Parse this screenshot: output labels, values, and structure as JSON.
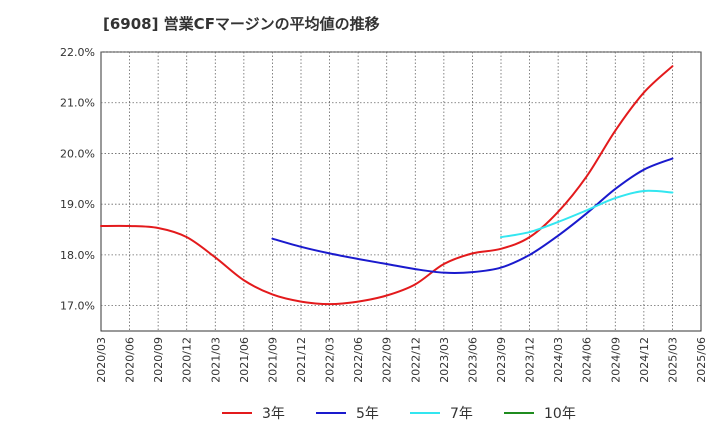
{
  "chart_data": {
    "type": "line",
    "title": "[6908]  営業CFマージンの平均値の推移",
    "xlabel": "",
    "ylabel": "",
    "ylim": [
      16.5,
      22.0
    ],
    "yticks": [
      17.0,
      18.0,
      19.0,
      20.0,
      21.0,
      22.0
    ],
    "ytick_labels": [
      "17.0%",
      "18.0%",
      "19.0%",
      "20.0%",
      "21.0%",
      "22.0%"
    ],
    "x_tick_labels": [
      "2020/03",
      "2020/06",
      "2020/09",
      "2020/12",
      "2021/03",
      "2021/06",
      "2021/09",
      "2021/12",
      "2022/03",
      "2022/06",
      "2022/09",
      "2022/12",
      "2023/03",
      "2023/06",
      "2023/09",
      "2023/12",
      "2024/03",
      "2024/06",
      "2024/09",
      "2024/12",
      "2025/03",
      "2025/06"
    ],
    "grid": true,
    "legend_position": "bottom",
    "series": [
      {
        "name": "3年",
        "color": "#e31a1c",
        "start_index": 0,
        "values": [
          18.57,
          18.57,
          18.53,
          18.35,
          17.95,
          17.5,
          17.22,
          17.08,
          17.03,
          17.08,
          17.2,
          17.42,
          17.82,
          18.03,
          18.12,
          18.35,
          18.85,
          19.55,
          20.45,
          21.2,
          21.72
        ]
      },
      {
        "name": "5年",
        "color": "#1a1acd",
        "start_index": 6,
        "values": [
          18.32,
          18.16,
          18.03,
          17.92,
          17.82,
          17.72,
          17.65,
          17.66,
          17.75,
          18.0,
          18.38,
          18.82,
          19.3,
          19.68,
          19.9
        ]
      },
      {
        "name": "7年",
        "color": "#33e6f0",
        "start_index": 14,
        "values": [
          18.35,
          18.45,
          18.65,
          18.88,
          19.12,
          19.26,
          19.23
        ]
      },
      {
        "name": "10年",
        "color": "#1f8c1f",
        "start_index": 0,
        "values": []
      }
    ]
  }
}
